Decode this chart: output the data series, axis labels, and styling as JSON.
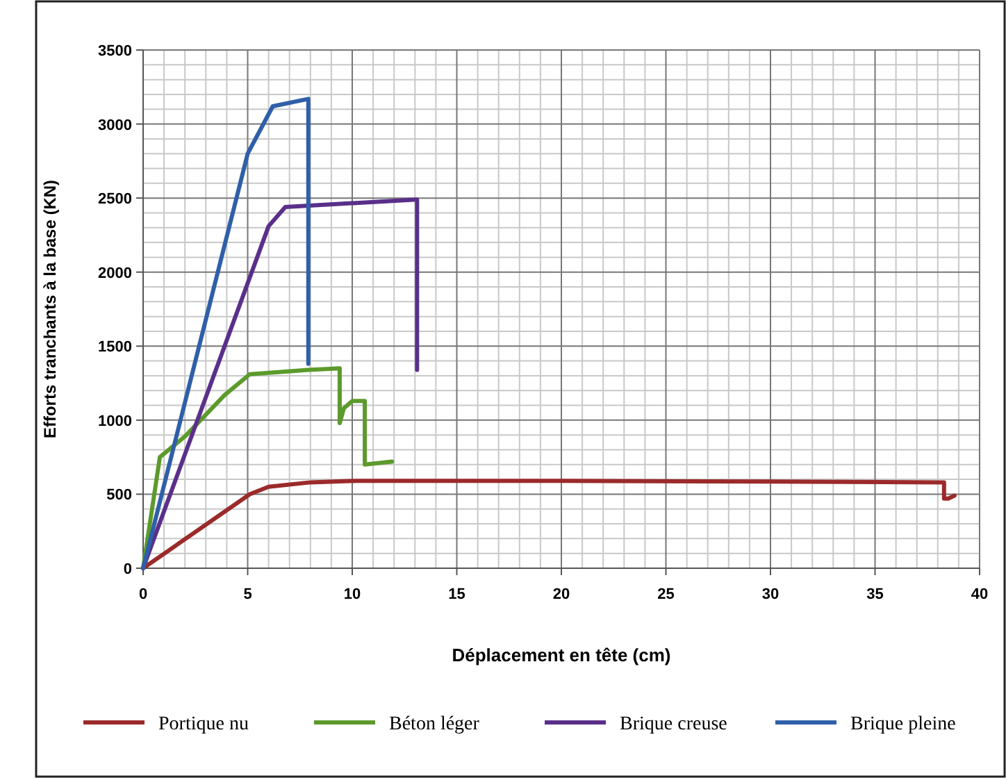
{
  "chart_data": {
    "type": "line",
    "xlabel": "Déplacement en tête (cm)",
    "ylabel": "Efforts tranchants à la base (KN)",
    "xlim": [
      0,
      40
    ],
    "xticks": [
      0,
      5,
      10,
      15,
      20,
      25,
      30,
      35,
      40
    ],
    "ylim": [
      0,
      3500
    ],
    "yticks": [
      0,
      500,
      1000,
      1500,
      2000,
      2500,
      3000,
      3500
    ],
    "grid": true,
    "legend": "bottom",
    "marker": "none",
    "line_style": "solid",
    "series": [
      {
        "name": "Portique nu",
        "color": "#9b2a2a",
        "x": [
          0,
          5.1,
          6,
          8,
          10.2,
          20,
          30,
          38.3,
          38.3,
          38.5,
          38.8
        ],
        "values": [
          0,
          500,
          550,
          580,
          590,
          590,
          585,
          580,
          470,
          470,
          490
        ]
      },
      {
        "name": "Béton léger",
        "color": "#5c9a2c",
        "x": [
          0,
          0.8,
          2,
          3.9,
          5.1,
          7.9,
          9.4,
          9.4,
          9.6,
          10,
          10.6,
          10.6,
          11.9
        ],
        "values": [
          0,
          750,
          890,
          1170,
          1310,
          1340,
          1350,
          980,
          1080,
          1130,
          1130,
          700,
          720
        ]
      },
      {
        "name": "Brique creuse",
        "color": "#5a2f8a",
        "x": [
          0,
          6,
          6.8,
          13.1,
          13.1
        ],
        "values": [
          0,
          2310,
          2440,
          2490,
          1340
        ]
      },
      {
        "name": "Brique pleine",
        "color": "#2f5fa8",
        "x": [
          0,
          5,
          6.2,
          7.9,
          7.9
        ],
        "values": [
          0,
          2800,
          3120,
          3170,
          1380
        ]
      }
    ]
  }
}
